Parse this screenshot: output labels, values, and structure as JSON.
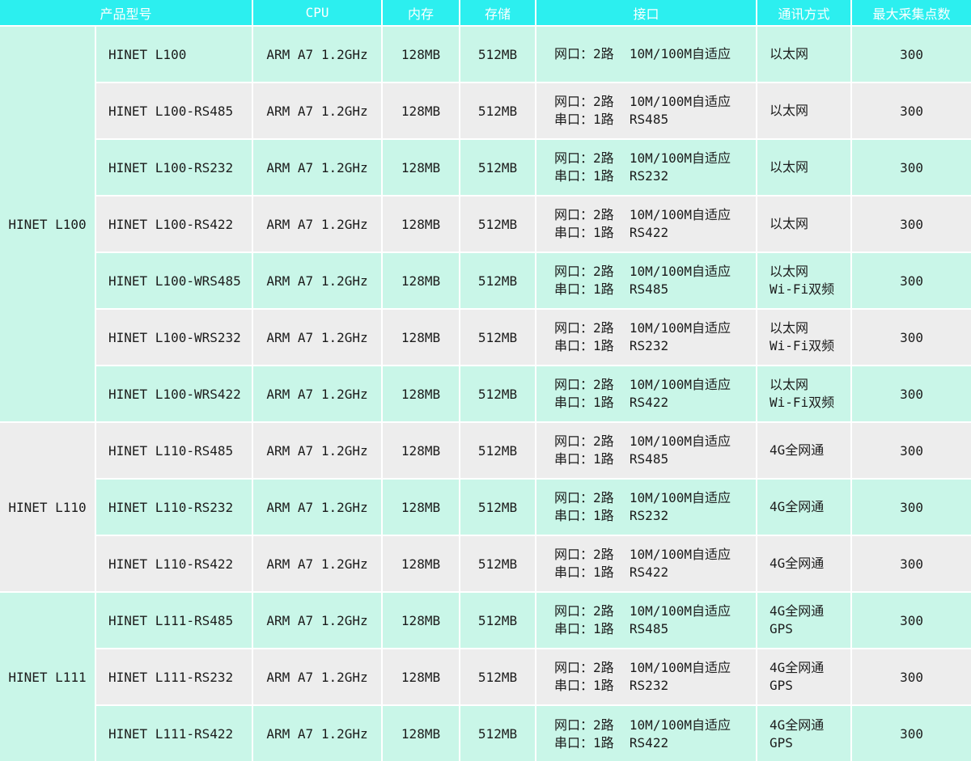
{
  "colors": {
    "header_bg": "#2cefef",
    "header_text": "#ffffff",
    "row_mint": "#c9f6e8",
    "row_gray": "#ededed",
    "divider": "#ffffff",
    "body_text": "#1c1c1c"
  },
  "header": {
    "model": "产品型号",
    "cpu": "CPU",
    "memory": "内存",
    "storage": "存储",
    "interface": "接口",
    "comm": "通讯方式",
    "max_points": "最大采集点数"
  },
  "groups": [
    {
      "label": "HINET L100",
      "rows": [
        {
          "model": "HINET L100",
          "cpu": "ARM A7 1.2GHz",
          "memory": "128MB",
          "storage": "512MB",
          "if1": "网口：2路  10M/100M自适应",
          "comm1": "以太网",
          "points": "300"
        },
        {
          "model": "HINET L100-RS485",
          "cpu": "ARM A7 1.2GHz",
          "memory": "128MB",
          "storage": "512MB",
          "if1": "网口：2路  10M/100M自适应",
          "if2": "串口：1路  RS485",
          "comm1": "以太网",
          "points": "300"
        },
        {
          "model": "HINET L100-RS232",
          "cpu": "ARM A7 1.2GHz",
          "memory": "128MB",
          "storage": "512MB",
          "if1": "网口：2路  10M/100M自适应",
          "if2": "串口：1路  RS232",
          "comm1": "以太网",
          "points": "300"
        },
        {
          "model": "HINET L100-RS422",
          "cpu": "ARM A7 1.2GHz",
          "memory": "128MB",
          "storage": "512MB",
          "if1": "网口：2路  10M/100M自适应",
          "if2": "串口：1路  RS422",
          "comm1": "以太网",
          "points": "300"
        },
        {
          "model": "HINET L100-WRS485",
          "cpu": "ARM A7 1.2GHz",
          "memory": "128MB",
          "storage": "512MB",
          "if1": "网口：2路  10M/100M自适应",
          "if2": "串口：1路  RS485",
          "comm1": "以太网",
          "comm2": "Wi-Fi双频",
          "points": "300"
        },
        {
          "model": "HINET L100-WRS232",
          "cpu": "ARM A7 1.2GHz",
          "memory": "128MB",
          "storage": "512MB",
          "if1": "网口：2路  10M/100M自适应",
          "if2": "串口：1路  RS232",
          "comm1": "以太网",
          "comm2": "Wi-Fi双频",
          "points": "300"
        },
        {
          "model": "HINET L100-WRS422",
          "cpu": "ARM A7 1.2GHz",
          "memory": "128MB",
          "storage": "512MB",
          "if1": "网口：2路  10M/100M自适应",
          "if2": "串口：1路  RS422",
          "comm1": "以太网",
          "comm2": "Wi-Fi双频",
          "points": "300"
        }
      ]
    },
    {
      "label": "HINET L110",
      "rows": [
        {
          "model": "HINET L110-RS485",
          "cpu": "ARM A7 1.2GHz",
          "memory": "128MB",
          "storage": "512MB",
          "if1": "网口：2路  10M/100M自适应",
          "if2": "串口：1路  RS485",
          "comm1": "4G全网通",
          "points": "300"
        },
        {
          "model": "HINET L110-RS232",
          "cpu": "ARM A7 1.2GHz",
          "memory": "128MB",
          "storage": "512MB",
          "if1": "网口：2路  10M/100M自适应",
          "if2": "串口：1路  RS232",
          "comm1": "4G全网通",
          "points": "300"
        },
        {
          "model": "HINET L110-RS422",
          "cpu": "ARM A7 1.2GHz",
          "memory": "128MB",
          "storage": "512MB",
          "if1": "网口：2路  10M/100M自适应",
          "if2": "串口：1路  RS422",
          "comm1": "4G全网通",
          "points": "300"
        }
      ]
    },
    {
      "label": "HINET L111",
      "rows": [
        {
          "model": "HINET L111-RS485",
          "cpu": "ARM A7 1.2GHz",
          "memory": "128MB",
          "storage": "512MB",
          "if1": "网口：2路  10M/100M自适应",
          "if2": "串口：1路  RS485",
          "comm1": "4G全网通",
          "comm2": "GPS",
          "points": "300"
        },
        {
          "model": "HINET L111-RS232",
          "cpu": "ARM A7 1.2GHz",
          "memory": "128MB",
          "storage": "512MB",
          "if1": "网口：2路  10M/100M自适应",
          "if2": "串口：1路  RS232",
          "comm1": "4G全网通",
          "comm2": "GPS",
          "points": "300"
        },
        {
          "model": "HINET L111-RS422",
          "cpu": "ARM A7 1.2GHz",
          "memory": "128MB",
          "storage": "512MB",
          "if1": "网口：2路  10M/100M自适应",
          "if2": "串口：1路  RS422",
          "comm1": "4G全网通",
          "comm2": "GPS",
          "points": "300"
        }
      ]
    }
  ]
}
